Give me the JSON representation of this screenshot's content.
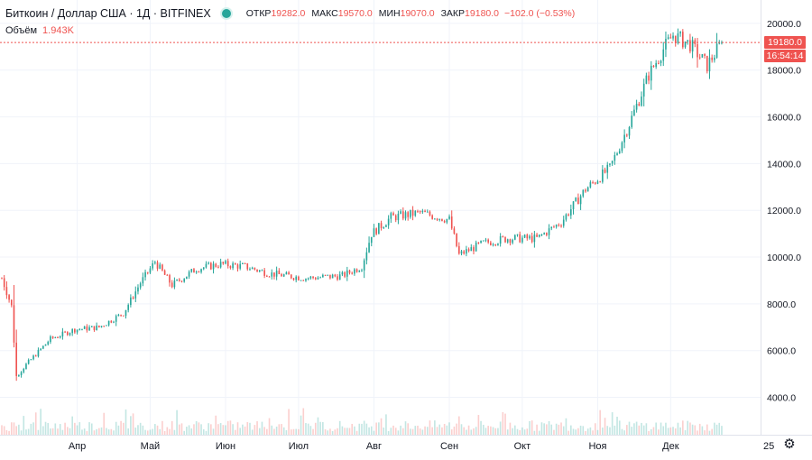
{
  "header": {
    "symbol_title": "Биткоин / Доллар США · 1Д · BITFINEX",
    "open_label": "ОТКР",
    "open_value": "19282.0",
    "high_label": "МАКС",
    "high_value": "19570.0",
    "low_label": "МИН",
    "low_value": "19070.0",
    "close_label": "ЗАКР",
    "close_value": "19180.0",
    "change": "−102.0 (−0.53%)"
  },
  "volume": {
    "label": "Объём",
    "value": "1.943K"
  },
  "price_tags": {
    "last_price": "19180.0",
    "countdown": "16:54:14"
  },
  "time_axis": {
    "trailing_label": "25",
    "settings_icon": "gear-icon"
  },
  "colors": {
    "up": "#26a69a",
    "down": "#ef5350",
    "grid": "#f0f3fa",
    "axis_text": "#131722"
  },
  "chart_data": {
    "type": "candlestick",
    "title": "Биткоин / Доллар США · 1Д · BITFINEX",
    "y_ticks": [
      "4000.0",
      "6000.0",
      "8000.0",
      "10000.0",
      "12000.0",
      "14000.0",
      "16000.0",
      "18000.0",
      "20000.0"
    ],
    "y_tick_values": [
      4000,
      6000,
      8000,
      10000,
      12000,
      14000,
      16000,
      18000,
      20000
    ],
    "ylim": [
      2400,
      21000
    ],
    "x_months": [
      "Апр",
      "Май",
      "Июн",
      "Июл",
      "Авг",
      "Сен",
      "Окт",
      "Ноя",
      "Дек"
    ],
    "x_month_start_day": [
      31,
      61,
      92,
      122,
      153,
      184,
      214,
      245,
      275
    ],
    "x_range_days": [
      0,
      309
    ],
    "last_close": 19180,
    "daily_close_path": [
      {
        "day": 0,
        "price": 9100
      },
      {
        "day": 4,
        "price": 7900
      },
      {
        "day": 6,
        "price": 4900
      },
      {
        "day": 10,
        "price": 5400
      },
      {
        "day": 20,
        "price": 6500
      },
      {
        "day": 30,
        "price": 6900
      },
      {
        "day": 40,
        "price": 7000
      },
      {
        "day": 50,
        "price": 7600
      },
      {
        "day": 57,
        "price": 8900
      },
      {
        "day": 63,
        "price": 9800
      },
      {
        "day": 70,
        "price": 8800
      },
      {
        "day": 80,
        "price": 9500
      },
      {
        "day": 90,
        "price": 9700
      },
      {
        "day": 100,
        "price": 9600
      },
      {
        "day": 110,
        "price": 9300
      },
      {
        "day": 125,
        "price": 9100
      },
      {
        "day": 140,
        "price": 9200
      },
      {
        "day": 148,
        "price": 9600
      },
      {
        "day": 152,
        "price": 11000
      },
      {
        "day": 160,
        "price": 11700
      },
      {
        "day": 172,
        "price": 11900
      },
      {
        "day": 184,
        "price": 11600
      },
      {
        "day": 188,
        "price": 10100
      },
      {
        "day": 198,
        "price": 10600
      },
      {
        "day": 208,
        "price": 10800
      },
      {
        "day": 220,
        "price": 10800
      },
      {
        "day": 230,
        "price": 11500
      },
      {
        "day": 240,
        "price": 12900
      },
      {
        "day": 250,
        "price": 13800
      },
      {
        "day": 258,
        "price": 15700
      },
      {
        "day": 266,
        "price": 17800
      },
      {
        "day": 272,
        "price": 18900
      },
      {
        "day": 276,
        "price": 19500
      },
      {
        "day": 283,
        "price": 19100
      },
      {
        "day": 290,
        "price": 18200
      },
      {
        "day": 296,
        "price": 19180
      }
    ],
    "volume_bars": "decorative"
  }
}
